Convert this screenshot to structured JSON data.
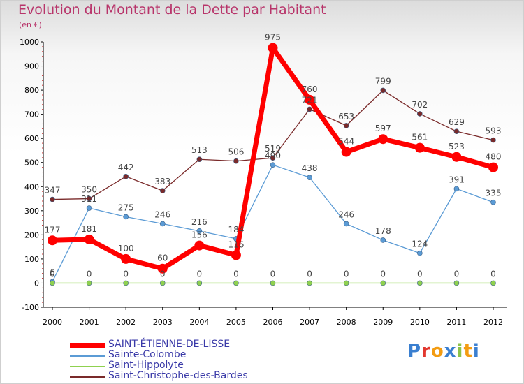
{
  "chart_data": {
    "type": "line",
    "title": "Evolution du Montant de la Dette par Habitant",
    "subtitle": "(en €)",
    "x": [
      "2000",
      "2001",
      "2002",
      "2003",
      "2004",
      "2005",
      "2006",
      "2007",
      "2008",
      "2009",
      "2010",
      "2011",
      "2012"
    ],
    "ylim": [
      -100,
      1000
    ],
    "yticks": [
      -100,
      0,
      100,
      200,
      300,
      400,
      500,
      600,
      700,
      800,
      900,
      1000
    ],
    "grid": false,
    "legend_position": "bottom-left",
    "series": [
      {
        "name": "Saint-Christophe-des-Bardes",
        "color": "#7a2a2a",
        "values": [
          347,
          350,
          442,
          383,
          513,
          506,
          519,
          721,
          653,
          799,
          702,
          629,
          593
        ],
        "labels": [
          "347",
          "350",
          "442",
          "383",
          "513",
          "506",
          "519",
          "721",
          "653",
          "799",
          "702",
          "629",
          "593"
        ]
      },
      {
        "name": "Sainte-Colombe",
        "color": "#5b9bd5",
        "values": [
          6,
          311,
          275,
          246,
          216,
          184,
          490,
          438,
          246,
          178,
          124,
          391,
          335
        ],
        "labels": [
          "6",
          "311",
          "275",
          "246",
          "216",
          "184",
          "490",
          "438",
          "246",
          "178",
          "124",
          "391",
          "335"
        ]
      },
      {
        "name": "Saint-Hippolyte",
        "color": "#8fd14f",
        "values": [
          0,
          0,
          0,
          0,
          0,
          0,
          0,
          0,
          0,
          0,
          0,
          0,
          0
        ],
        "labels": [
          "0",
          "0",
          "0",
          "0",
          "0",
          "0",
          "0",
          "0",
          "0",
          "0",
          "0",
          "0",
          "0"
        ]
      },
      {
        "name": "SAINT-ÉTIENNE-DE-LISSE",
        "color": "#ff0000",
        "values": [
          177,
          181,
          100,
          60,
          156,
          116,
          975,
          760,
          544,
          597,
          561,
          523,
          480
        ],
        "labels": [
          "177",
          "181",
          "100",
          "60",
          "156",
          "116",
          "975",
          "760",
          "544",
          "597",
          "561",
          "523",
          "480"
        ]
      }
    ]
  },
  "legend": [
    {
      "name": "SAINT-ÉTIENNE-DE-LISSE",
      "color": "#ff0000"
    },
    {
      "name": "Sainte-Colombe",
      "color": "#5b9bd5"
    },
    {
      "name": "Saint-Hippolyte",
      "color": "#8fd14f"
    },
    {
      "name": "Saint-Christophe-des-Bardes",
      "color": "#7a2a2a"
    }
  ],
  "logo": {
    "text": "Proxiti",
    "colors": [
      "#3a7fd0",
      "#e2382f",
      "#f39c12",
      "#3a7fd0",
      "#8bc34a",
      "#f39c12",
      "#3a7fd0"
    ]
  }
}
